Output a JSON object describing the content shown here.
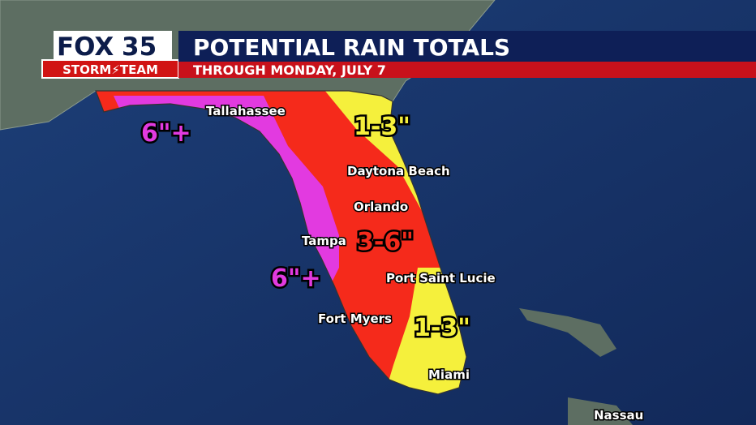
{
  "header": {
    "logo": "FOX",
    "channel": "35",
    "team": "STORM⚡TEAM",
    "title": "POTENTIAL RAIN TOTALS",
    "subtitle": "THROUGH MONDAY, JULY 7"
  },
  "cities": [
    {
      "label": "Tallahassee"
    },
    {
      "label": "Daytona Beach"
    },
    {
      "label": "Orlando"
    },
    {
      "label": "Tampa"
    },
    {
      "label": "Port Saint Lucie"
    },
    {
      "label": "Fort Myers"
    },
    {
      "label": "Miami"
    },
    {
      "label": "Nassau"
    }
  ],
  "zones": [
    {
      "label": "6\"+"
    },
    {
      "label": "1-3\""
    },
    {
      "label": "3-6\""
    },
    {
      "label": "6\"+"
    },
    {
      "label": "1-3\""
    }
  ]
}
